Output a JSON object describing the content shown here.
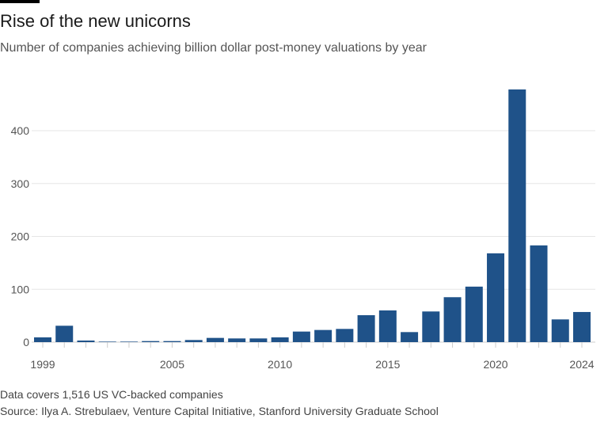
{
  "header": {
    "title": "Rise of the new unicorns",
    "subtitle": "Number of companies achieving billion dollar post-money valuations by year"
  },
  "footer": {
    "note": "Data covers 1,516 US VC-backed companies",
    "source": "Source: Ilya A. Strebulaev, Venture Capital Initiative, Stanford University Graduate School"
  },
  "chart_data": {
    "type": "bar",
    "categories": [
      1999,
      2000,
      2001,
      2002,
      2003,
      2004,
      2005,
      2006,
      2007,
      2008,
      2009,
      2010,
      2011,
      2012,
      2013,
      2014,
      2015,
      2016,
      2017,
      2018,
      2019,
      2020,
      2021,
      2022,
      2023,
      2024
    ],
    "values": [
      9,
      31,
      3,
      1,
      1,
      2,
      2,
      4,
      8,
      7,
      7,
      9,
      20,
      23,
      25,
      51,
      60,
      19,
      58,
      85,
      105,
      168,
      478,
      183,
      43,
      57
    ],
    "ylim": [
      0,
      480
    ],
    "yticks": [
      0,
      100,
      200,
      300,
      400
    ],
    "xticks": [
      1999,
      2005,
      2010,
      2015,
      2020,
      2024
    ],
    "grid": true,
    "color": "#1f5289"
  }
}
